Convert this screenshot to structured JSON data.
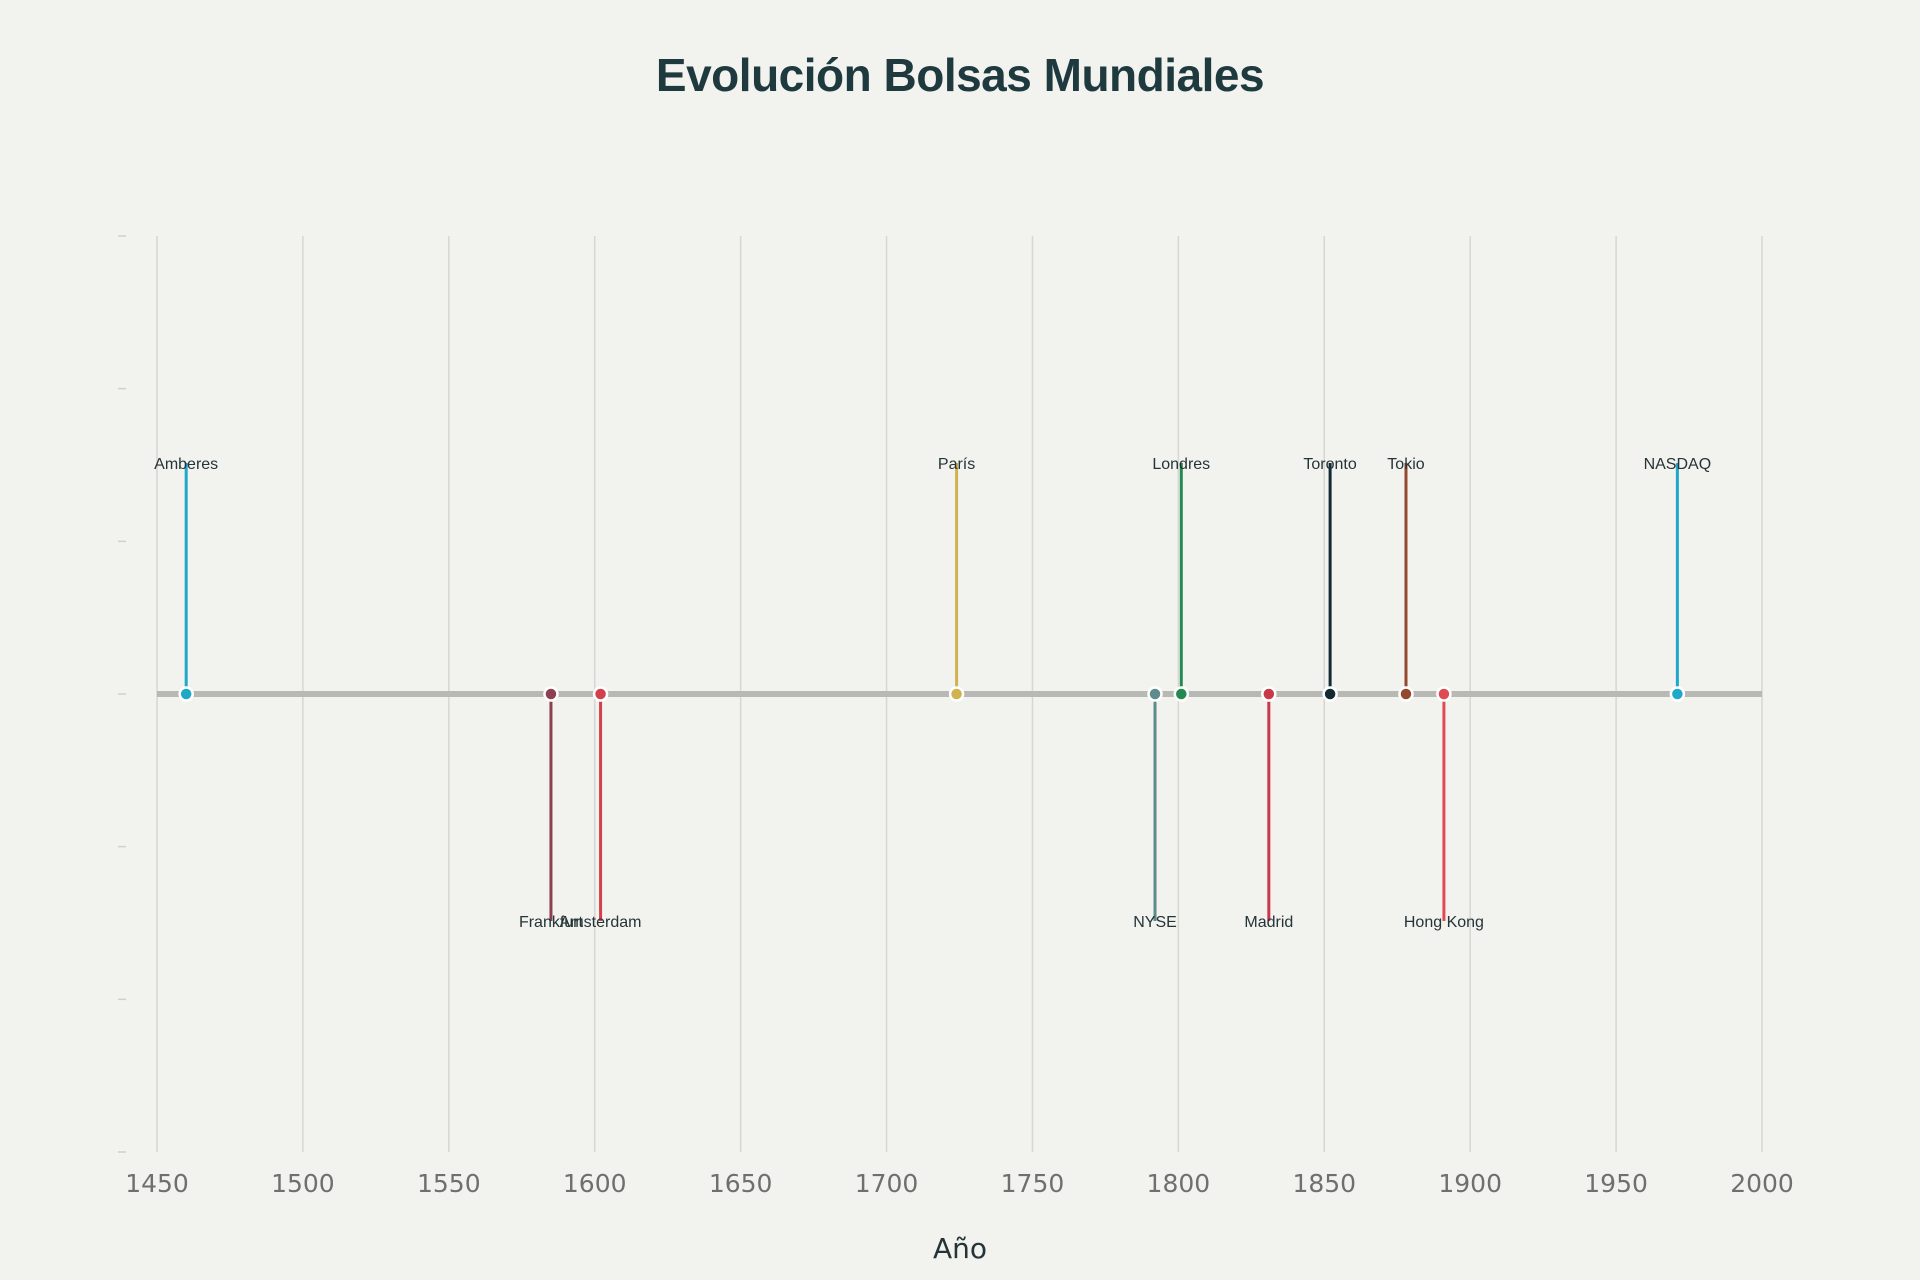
{
  "chart_data": {
    "type": "timeline",
    "title": "Evolución Bolsas Mundiales",
    "xlabel": "Año",
    "xlim": [
      1450,
      2000
    ],
    "x_ticks": [
      1450,
      1500,
      1550,
      1600,
      1650,
      1700,
      1750,
      1800,
      1850,
      1900,
      1950,
      2000
    ],
    "grid": true,
    "events": [
      {
        "label": "Amberes",
        "year": 1460,
        "side": "above",
        "color": "#1fa8c7"
      },
      {
        "label": "Frankfurt",
        "year": 1585,
        "side": "below",
        "color": "#8f3f52"
      },
      {
        "label": "Amsterdam",
        "year": 1602,
        "side": "below",
        "color": "#d2404c"
      },
      {
        "label": "París",
        "year": 1724,
        "side": "above",
        "color": "#d1b24e"
      },
      {
        "label": "NYSE",
        "year": 1792,
        "side": "below",
        "color": "#5e8b8b"
      },
      {
        "label": "Londres",
        "year": 1801,
        "side": "above",
        "color": "#238a4f"
      },
      {
        "label": "Madrid",
        "year": 1831,
        "side": "below",
        "color": "#c8394a"
      },
      {
        "label": "Toronto",
        "year": 1852,
        "side": "above",
        "color": "#142a33"
      },
      {
        "label": "Tokio",
        "year": 1878,
        "side": "above",
        "color": "#93482f"
      },
      {
        "label": "Hong Kong",
        "year": 1891,
        "side": "below",
        "color": "#e04a52"
      },
      {
        "label": "NASDAQ",
        "year": 1971,
        "side": "above",
        "color": "#1fa8c7"
      }
    ]
  }
}
